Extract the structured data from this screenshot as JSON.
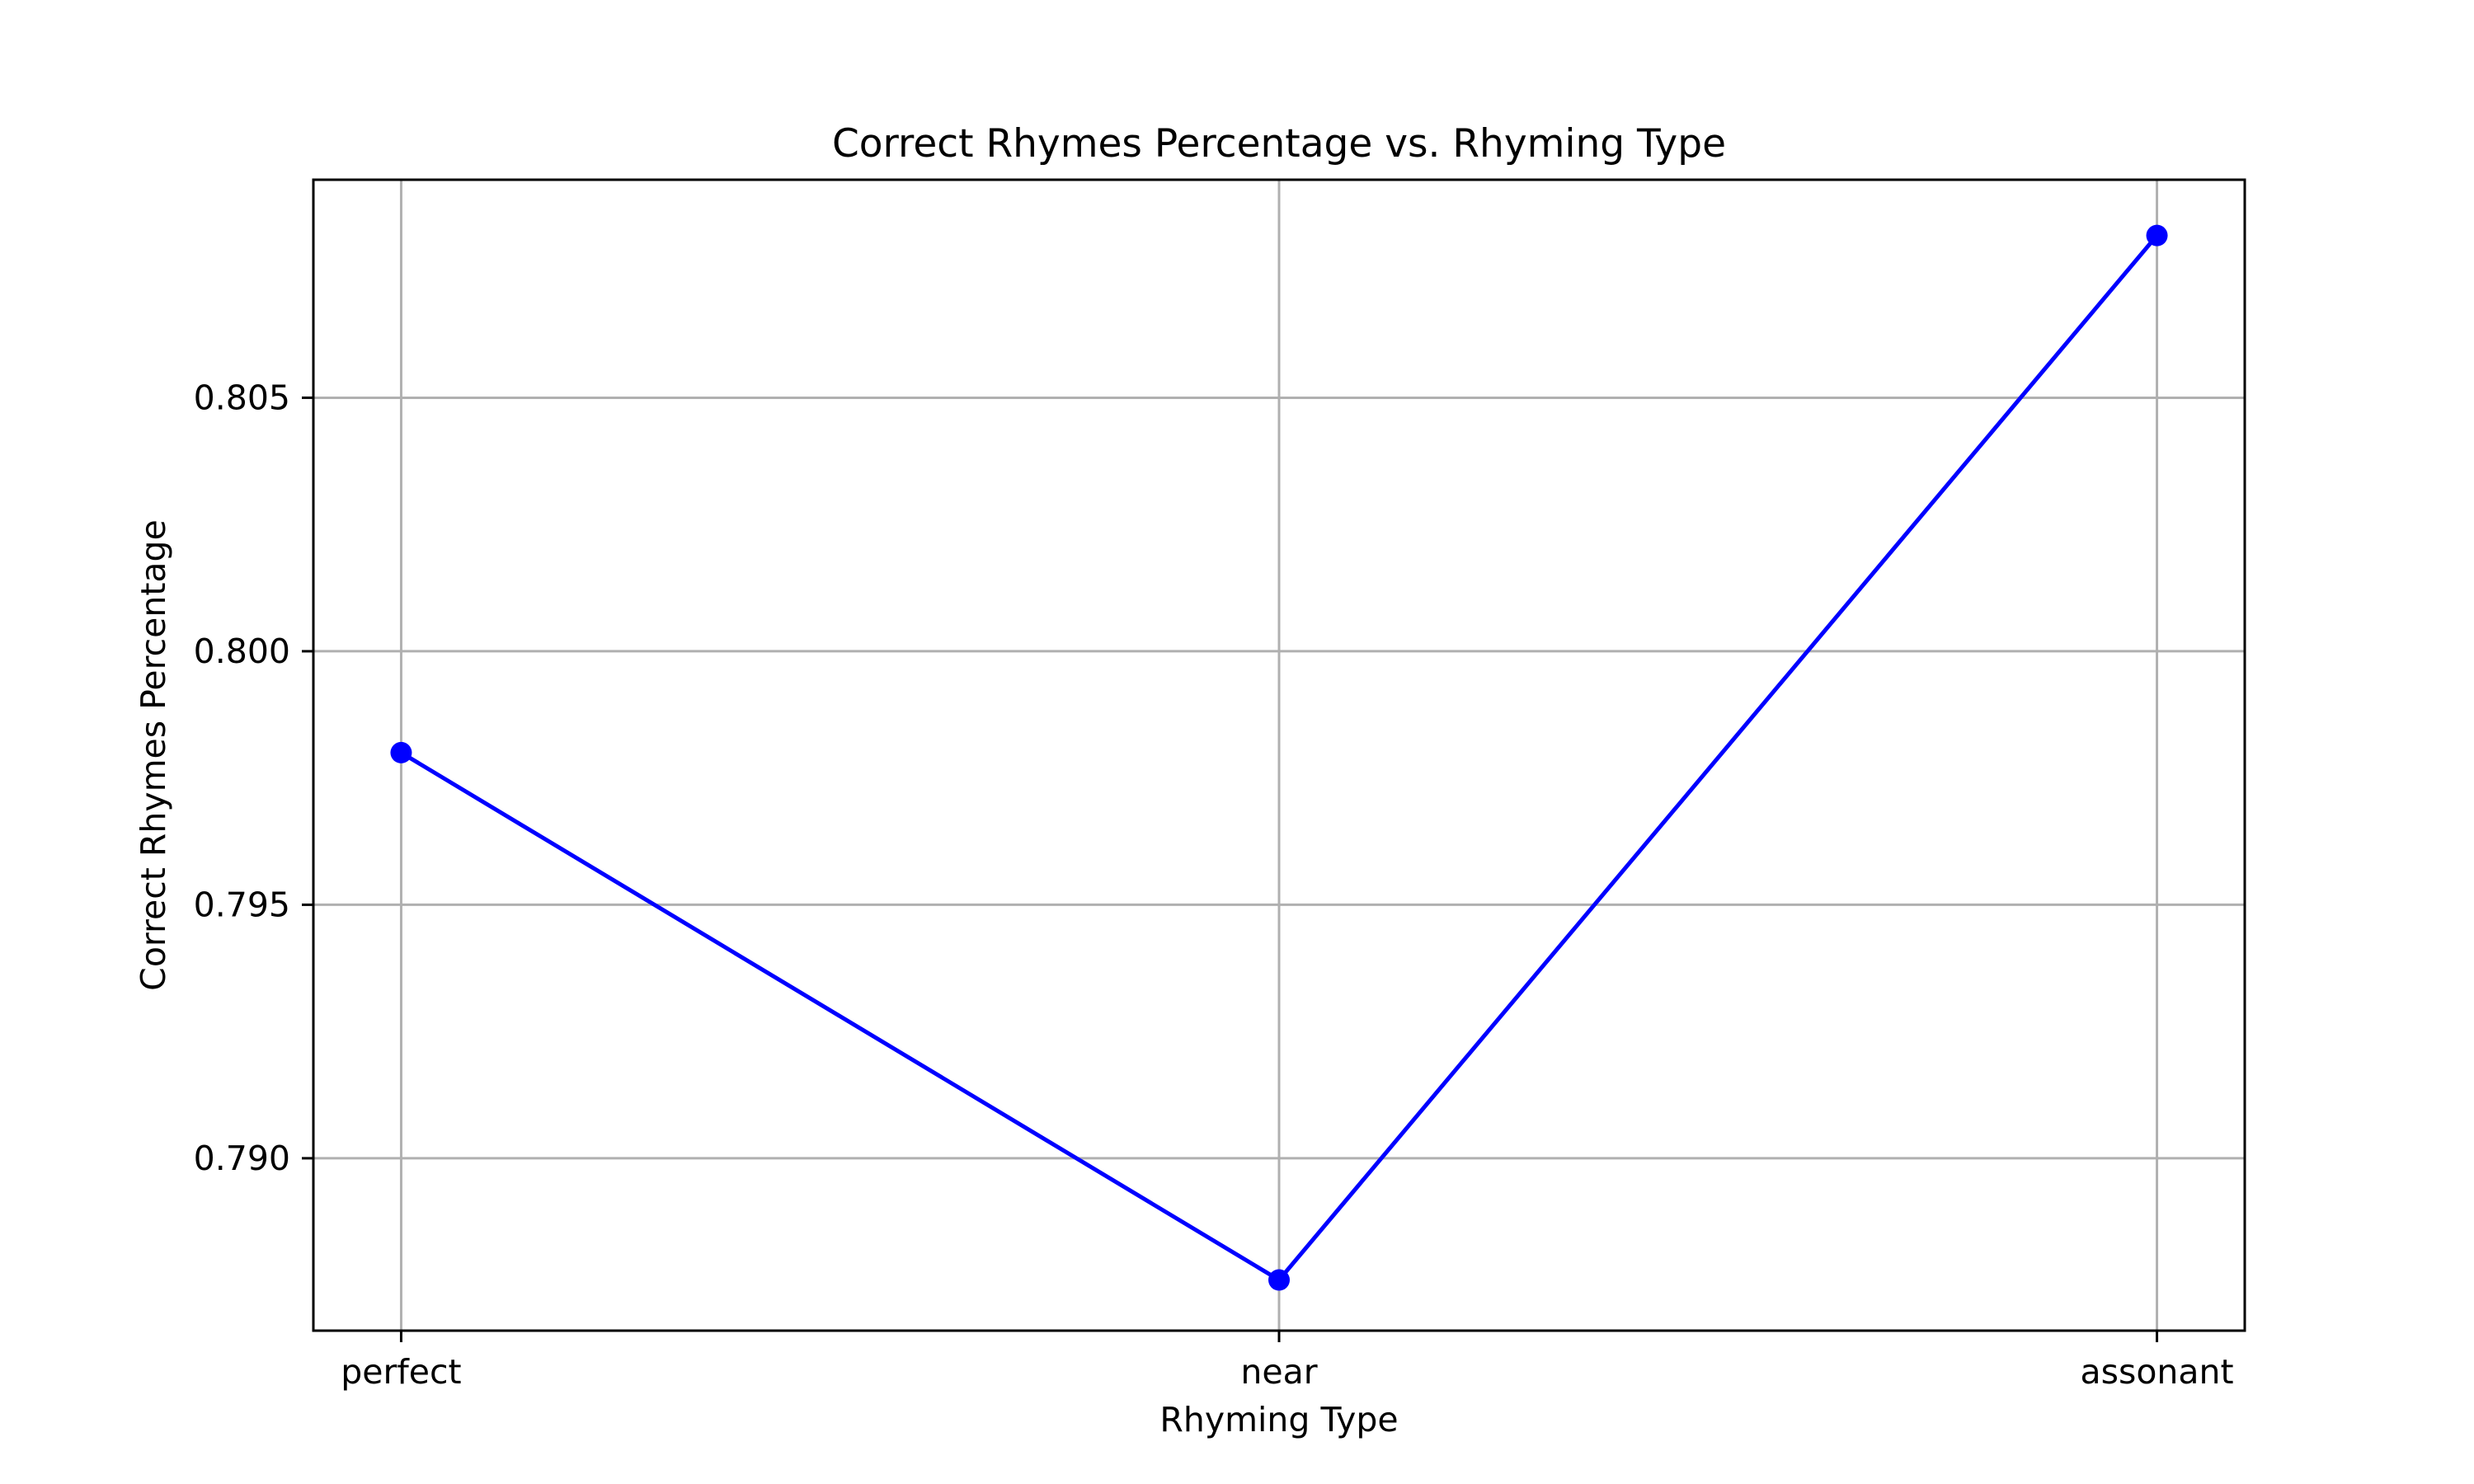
{
  "chart_data": {
    "type": "line",
    "title": "Correct Rhymes Percentage vs. Rhyming Type",
    "xlabel": "Rhyming Type",
    "ylabel": "Correct Rhymes Percentage",
    "categories": [
      "perfect",
      "near",
      "assonant"
    ],
    "series": [
      {
        "values": [
          0.798,
          0.7876,
          0.8082
        ],
        "color": "#0000ff",
        "marker": "circle"
      }
    ],
    "ylim": [
      0.7866,
      0.8093
    ],
    "yticks": [
      0.79,
      0.795,
      0.8,
      0.805
    ],
    "ytick_labels": [
      "0.790",
      "0.795",
      "0.800",
      "0.805"
    ],
    "grid": true,
    "legend": "none"
  }
}
